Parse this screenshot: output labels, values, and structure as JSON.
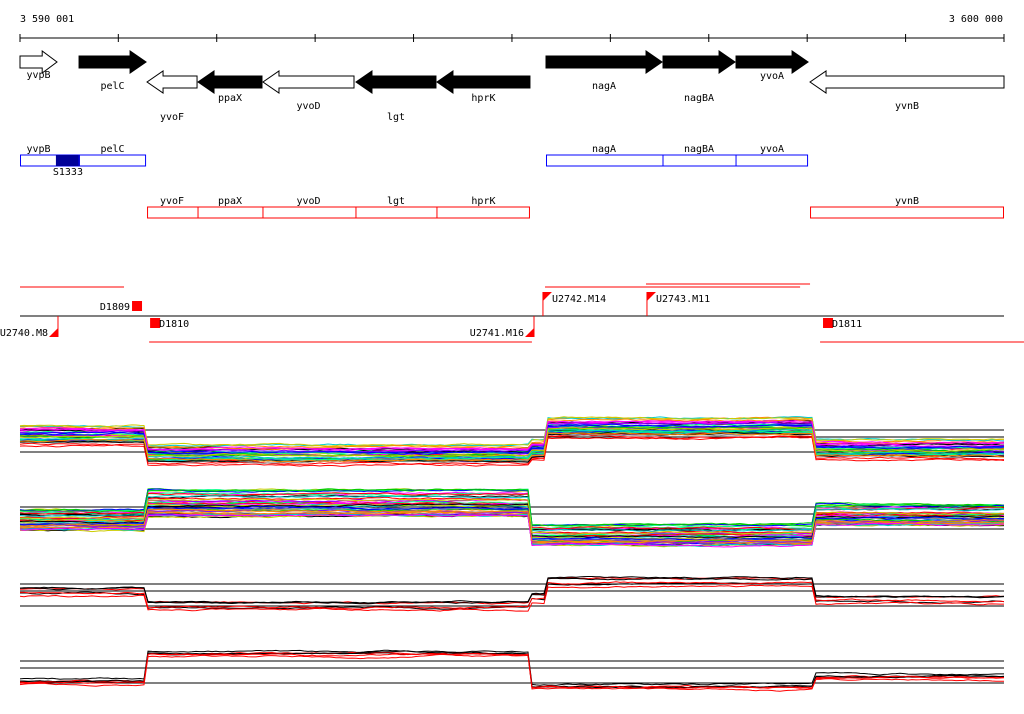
{
  "axis": {
    "start_label": "3 590 001",
    "end_label": "3 600 000",
    "start": 3590001,
    "end": 3600000,
    "tick_step": 1000
  },
  "colors": {
    "gene": "#000000",
    "operon_blue": "#0000ff",
    "operon_dark": "#000099",
    "red": "#ff0000",
    "line": "#000000"
  },
  "genes": [
    {
      "name": "yvpB",
      "start": 3590001,
      "end": 3590377,
      "strand": "+",
      "filled": false
    },
    {
      "name": "pelC",
      "start": 3590601,
      "end": 3591282,
      "strand": "+",
      "filled": true
    },
    {
      "name": "yvoF",
      "start": 3591292,
      "end": 3591800,
      "strand": "-",
      "filled": false
    },
    {
      "name": "ppaX",
      "start": 3591810,
      "end": 3592460,
      "strand": "-",
      "filled": true
    },
    {
      "name": "yvoD",
      "start": 3592470,
      "end": 3593395,
      "strand": "-",
      "filled": false
    },
    {
      "name": "lgt",
      "start": 3593415,
      "end": 3594228,
      "strand": "-",
      "filled": true
    },
    {
      "name": "hprK",
      "start": 3594238,
      "end": 3595183,
      "strand": "-",
      "filled": true
    },
    {
      "name": "nagA",
      "start": 3595346,
      "end": 3596525,
      "strand": "+",
      "filled": true
    },
    {
      "name": "nagBA",
      "start": 3596535,
      "end": 3597267,
      "strand": "+",
      "filled": true
    },
    {
      "name": "yvoA",
      "start": 3597277,
      "end": 3598009,
      "strand": "+",
      "filled": true
    },
    {
      "name": "yvnB",
      "start": 3598029,
      "end": 3600000,
      "strand": "-",
      "filled": false
    }
  ],
  "operons_forward": [
    {
      "genes": [
        "yvpB",
        "pelC"
      ],
      "start": 3590001,
      "end": 3591282,
      "marks": [
        {
          "name": "S1333",
          "start": 3590366,
          "end": 3590610
        }
      ]
    },
    {
      "genes": [
        "nagA",
        "nagBA",
        "yvoA"
      ],
      "start": 3595346,
      "end": 3598009,
      "marks": []
    }
  ],
  "operons_reverse": [
    {
      "genes": [
        "yvoF",
        "ppaX",
        "yvoD",
        "lgt",
        "hprK"
      ],
      "start": 3591292,
      "end": 3595183
    },
    {
      "genes": [
        "yvnB"
      ],
      "start": 3598029,
      "end": 3600000
    }
  ],
  "segments": {
    "top_lines": [
      [
        3590001,
        3591058
      ],
      [
        3595336,
        3597928
      ],
      [
        3596362,
        3598029
      ]
    ],
    "bottom_lines": [
      [
        3591313,
        3595203
      ],
      [
        3598131,
        3600203
      ]
    ],
    "markers": [
      {
        "label": "D1809",
        "pos": 3591180,
        "side": "above",
        "type": "square",
        "label_side": "left"
      },
      {
        "label": "U2740.M8",
        "pos": 3590387,
        "side": "below",
        "type": "triangle",
        "label_side": "left"
      },
      {
        "label": "D1810",
        "pos": 3591323,
        "side": "below",
        "type": "square",
        "label_side": "right"
      },
      {
        "label": "U2741.M16",
        "pos": 3595224,
        "side": "below",
        "type": "triangle",
        "label_side": "left"
      },
      {
        "label": "U2742.M14",
        "pos": 3595315,
        "side": "above",
        "type": "triangle",
        "label_side": "right"
      },
      {
        "label": "U2743.M11",
        "pos": 3596372,
        "side": "above",
        "type": "triangle",
        "label_side": "right"
      },
      {
        "label": "D1811",
        "pos": 3598161,
        "side": "below",
        "type": "square",
        "label_side": "right"
      }
    ]
  }
}
